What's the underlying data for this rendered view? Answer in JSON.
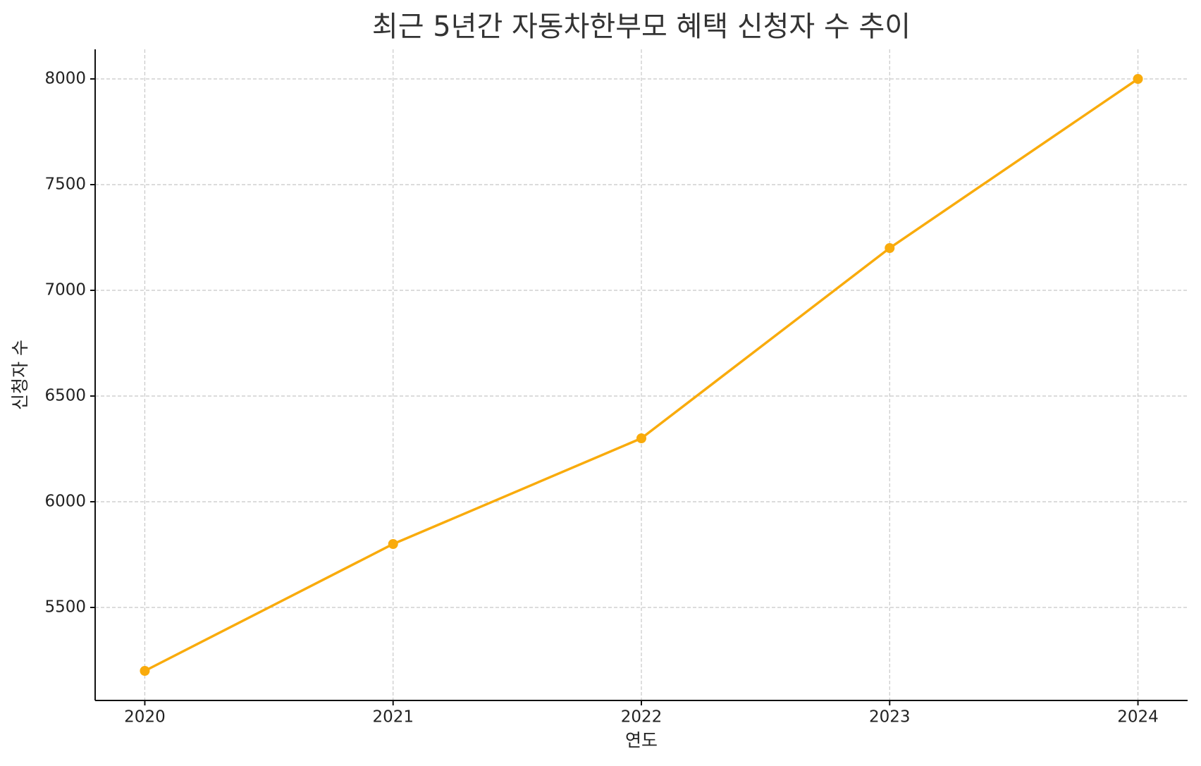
{
  "chart_data": {
    "type": "line",
    "title": "최근 5년간 자동차한부모 혜택 신청자 수 추이",
    "x_label": "연도",
    "y_label": "신청자 수",
    "x": [
      2020,
      2021,
      2022,
      2023,
      2024
    ],
    "series": [
      {
        "name": "신청자 수",
        "color": "#f9ab0c",
        "values": [
          5200,
          5800,
          6300,
          7200,
          8000
        ]
      }
    ],
    "xlim": [
      2019.8,
      2024.2
    ],
    "xticks": [
      2020,
      2021,
      2022,
      2023,
      2024
    ],
    "ylim": [
      5060,
      8140
    ],
    "yticks": [
      5500,
      6000,
      6500,
      7000,
      7500,
      8000
    ],
    "grid": true,
    "legend": false
  }
}
